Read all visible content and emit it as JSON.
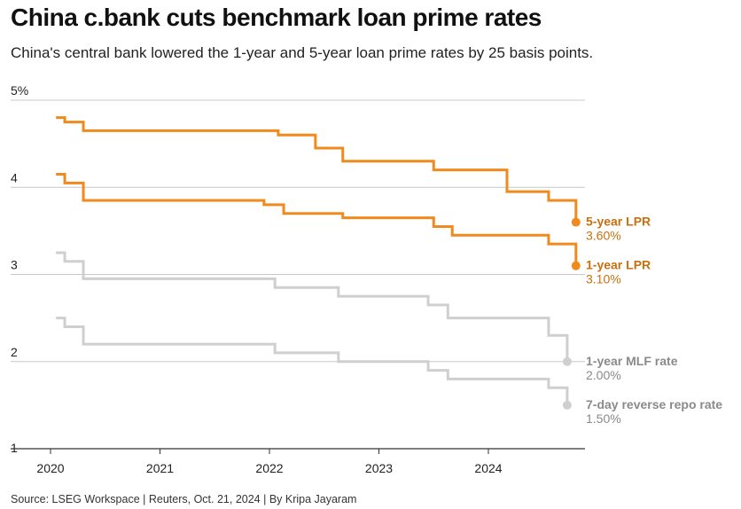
{
  "title": "China c.bank cuts benchmark loan prime rates",
  "subtitle": "China's central bank lowered the 1-year and 5-year loan prime rates by 25 basis points.",
  "source": "Source: LSEG Workspace | Reuters, Oct. 21, 2024 | By Kripa Jayaram",
  "colors": {
    "lpr": "#f08a1c",
    "lpr_text": "#c8700f",
    "policy": "#cfcfcf",
    "policy_text": "#8a8a8a",
    "grid": "#c8c8c8",
    "axis": "#333333"
  },
  "chart_data": {
    "type": "line",
    "title": "China c.bank cuts benchmark loan prime rates",
    "ylim": [
      1,
      5
    ],
    "xlim": [
      2019.7,
      2024.9
    ],
    "y_ticks": [
      {
        "value": 5,
        "label": "5%"
      },
      {
        "value": 4,
        "label": "4"
      },
      {
        "value": 3,
        "label": "3"
      },
      {
        "value": 2,
        "label": "2"
      },
      {
        "value": 1,
        "label": "1"
      }
    ],
    "x_ticks": [
      {
        "value": 2020,
        "label": "2020"
      },
      {
        "value": 2021,
        "label": "2021"
      },
      {
        "value": 2022,
        "label": "2022"
      },
      {
        "value": 2023,
        "label": "2023"
      },
      {
        "value": 2024,
        "label": "2024"
      }
    ],
    "grid": true,
    "series": [
      {
        "name": "5-year LPR",
        "value_label": "3.60%",
        "color_key": "lpr",
        "points": [
          [
            2020.05,
            4.8
          ],
          [
            2020.13,
            4.75
          ],
          [
            2020.3,
            4.65
          ],
          [
            2022.08,
            4.6
          ],
          [
            2022.42,
            4.45
          ],
          [
            2022.67,
            4.3
          ],
          [
            2023.5,
            4.2
          ],
          [
            2024.17,
            3.95
          ],
          [
            2024.55,
            3.85
          ],
          [
            2024.8,
            3.6
          ]
        ]
      },
      {
        "name": "1-year LPR",
        "value_label": "3.10%",
        "color_key": "lpr",
        "points": [
          [
            2020.05,
            4.15
          ],
          [
            2020.13,
            4.05
          ],
          [
            2020.3,
            3.85
          ],
          [
            2021.95,
            3.8
          ],
          [
            2022.13,
            3.7
          ],
          [
            2022.67,
            3.65
          ],
          [
            2023.5,
            3.55
          ],
          [
            2023.67,
            3.45
          ],
          [
            2024.55,
            3.35
          ],
          [
            2024.8,
            3.1
          ]
        ]
      },
      {
        "name": "1-year MLF rate",
        "value_label": "2.00%",
        "color_key": "policy",
        "points": [
          [
            2020.05,
            3.25
          ],
          [
            2020.13,
            3.15
          ],
          [
            2020.3,
            2.95
          ],
          [
            2022.05,
            2.85
          ],
          [
            2022.63,
            2.75
          ],
          [
            2023.45,
            2.65
          ],
          [
            2023.63,
            2.5
          ],
          [
            2024.55,
            2.3
          ],
          [
            2024.72,
            2.0
          ]
        ]
      },
      {
        "name": "7-day reverse repo rate",
        "value_label": "1.50%",
        "color_key": "policy",
        "points": [
          [
            2020.05,
            2.5
          ],
          [
            2020.13,
            2.4
          ],
          [
            2020.3,
            2.2
          ],
          [
            2022.05,
            2.1
          ],
          [
            2022.63,
            2.0
          ],
          [
            2023.45,
            1.9
          ],
          [
            2023.63,
            1.8
          ],
          [
            2024.55,
            1.7
          ],
          [
            2024.72,
            1.5
          ]
        ]
      }
    ]
  }
}
